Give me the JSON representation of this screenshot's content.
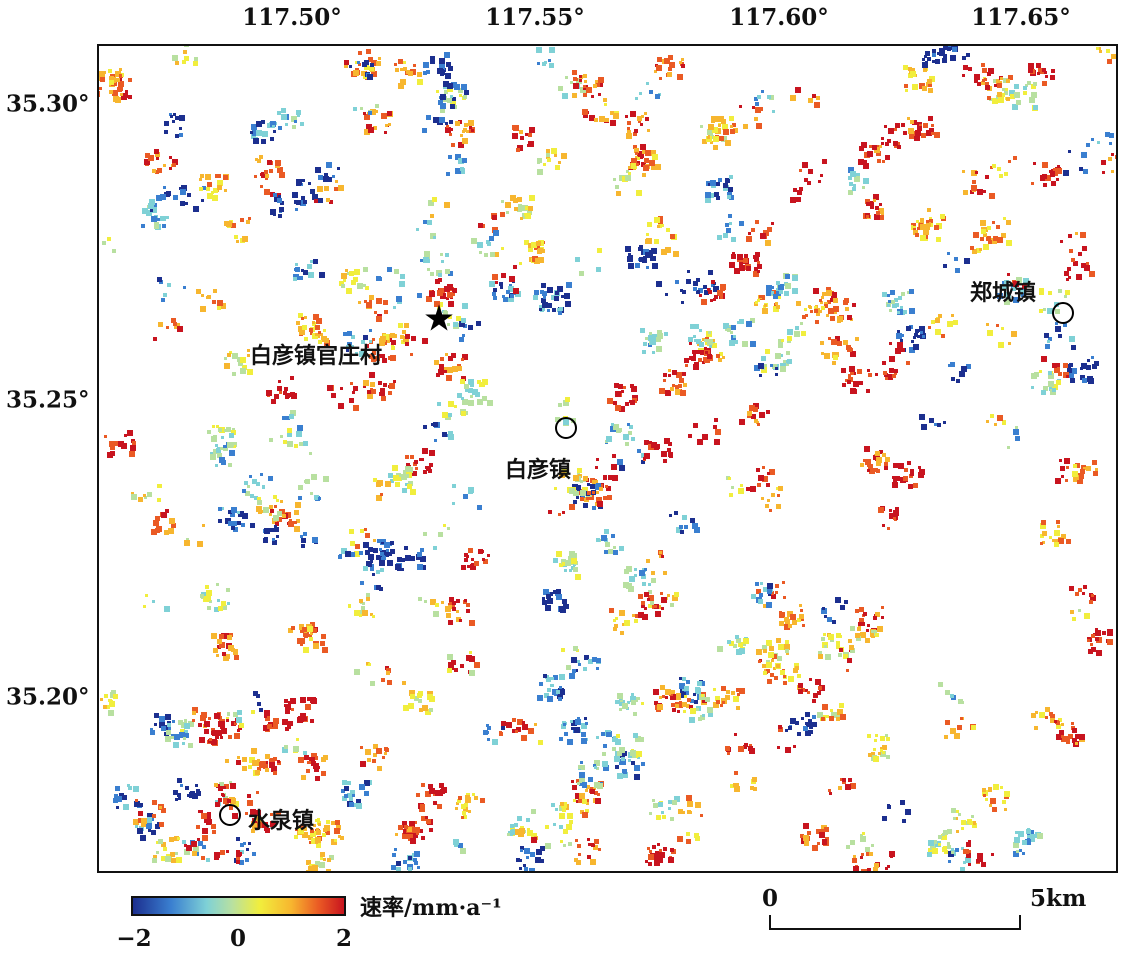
{
  "axes": {
    "longitude_ticks": [
      "117.50°",
      "117.55°",
      "117.60°",
      "117.65°"
    ],
    "latitude_ticks": [
      "35.30°",
      "35.25°",
      "35.20°"
    ]
  },
  "places": [
    {
      "label": "白彦镇官庄村",
      "marker": "star-icon",
      "lon": 117.53,
      "lat": 35.264
    },
    {
      "label": "白彦镇",
      "marker": "circle-icon",
      "lon": 117.556,
      "lat": 35.246
    },
    {
      "label": "郑城镇",
      "marker": "circle-icon",
      "lon": 117.658,
      "lat": 35.265
    },
    {
      "label": "水泉镇",
      "marker": "circle-icon",
      "lon": 117.488,
      "lat": 35.181
    }
  ],
  "legend": {
    "unit": "速率/mm·a⁻¹",
    "tick_labels": [
      "−2",
      "0",
      "2"
    ],
    "range": [
      -2,
      2
    ],
    "colors": [
      "#1c2f8f",
      "#3a7fd0",
      "#7fd1d6",
      "#b8e0a0",
      "#f1ee3d",
      "#f7b62f",
      "#ea5a24",
      "#c8141f"
    ]
  },
  "scale_bar": {
    "start_label": "0",
    "end_label": "5km"
  }
}
